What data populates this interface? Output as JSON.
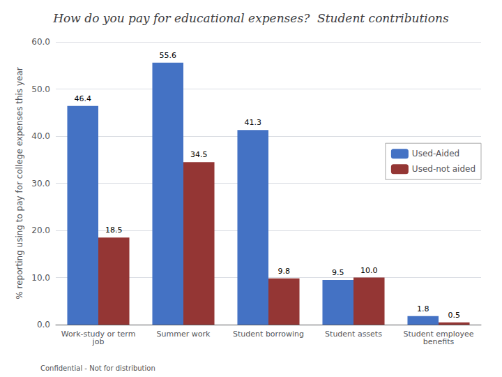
{
  "chart_data": {
    "type": "bar",
    "title": "How do you pay for educational expenses?  Student contributions",
    "categories": [
      "Work-study or term\njob",
      "Summer work",
      "Student borrowing",
      "Student assets",
      "Student employee\nbenefits"
    ],
    "series": [
      {
        "name": "Used-Aided",
        "color": "#4472C4",
        "values": [
          46.4,
          55.6,
          41.3,
          9.5,
          1.8
        ],
        "value_labels": [
          "46.4",
          "55.6",
          "41.3",
          "9.5",
          "1.8"
        ]
      },
      {
        "name": "Used-not aided",
        "color": "#943634",
        "values": [
          18.5,
          34.5,
          9.8,
          10.0,
          0.5
        ],
        "value_labels": [
          "18.5",
          "34.5",
          "9.8",
          "10.0",
          "0.5"
        ]
      }
    ],
    "ylabel": "% reporting using to pay for college expenses this year",
    "ylim": [
      0,
      60
    ],
    "yticks": [
      {
        "value": 0,
        "label": "0.0"
      },
      {
        "value": 10,
        "label": "10.0"
      },
      {
        "value": 20,
        "label": "20.0"
      },
      {
        "value": 30,
        "label": "30.0"
      },
      {
        "value": 40,
        "label": "40.0"
      },
      {
        "value": 50,
        "label": "50.0"
      },
      {
        "value": 60,
        "label": "60.0"
      }
    ],
    "grid": true,
    "legend": "right",
    "data_labels": true,
    "annotations": [
      "Confidential - Not for distribution"
    ]
  }
}
